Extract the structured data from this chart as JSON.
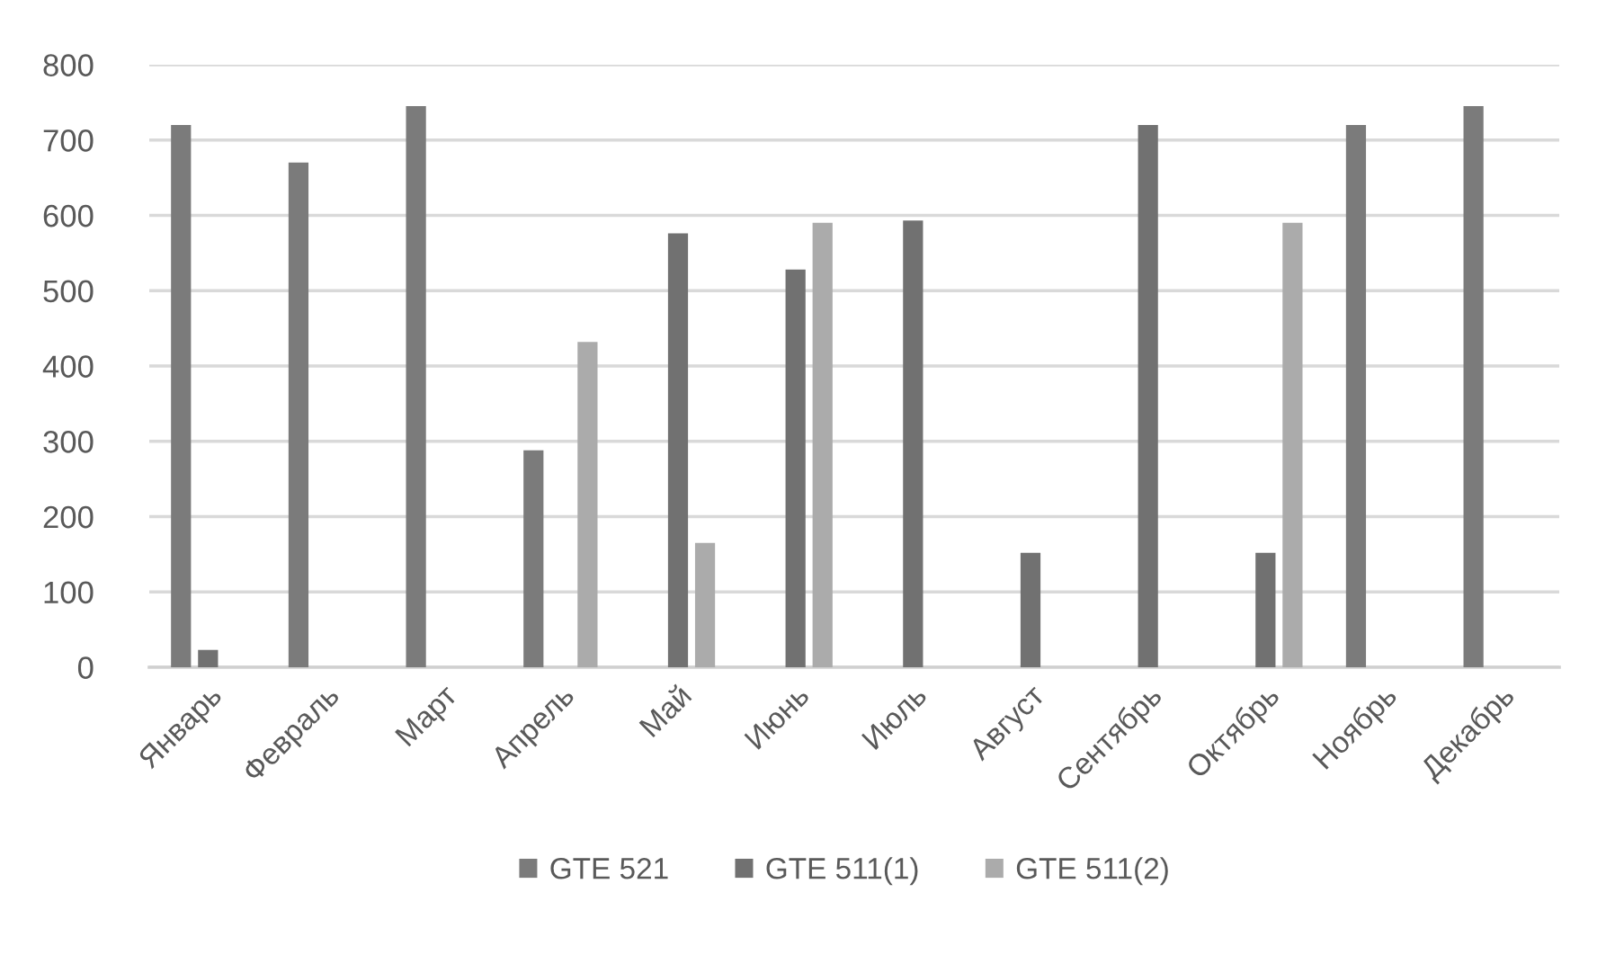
{
  "chart_data": {
    "type": "bar",
    "categories": [
      "Январь",
      "Февраль",
      "Март",
      "Апрель",
      "Май",
      "Июнь",
      "Июль",
      "Август",
      "Сентябрь",
      "Октябрь",
      "Ноябрь",
      "Декабрь"
    ],
    "series": [
      {
        "name": "GTE 521",
        "color": "#7b7b7b",
        "values": [
          720,
          670,
          745,
          288,
          null,
          null,
          null,
          null,
          null,
          null,
          720,
          745
        ]
      },
      {
        "name": "GTE 511(1)",
        "color": "#717171",
        "values": [
          23,
          null,
          null,
          null,
          576,
          528,
          593,
          152,
          720,
          152,
          null,
          null
        ]
      },
      {
        "name": "GTE 511(2)",
        "color": "#ababab",
        "values": [
          null,
          null,
          null,
          432,
          165,
          590,
          null,
          null,
          null,
          590,
          null,
          null
        ]
      }
    ],
    "ylim": [
      0,
      800
    ],
    "yticks": [
      0,
      100,
      200,
      300,
      400,
      500,
      600,
      700,
      800
    ],
    "grid": "y",
    "legend": "bottom"
  }
}
